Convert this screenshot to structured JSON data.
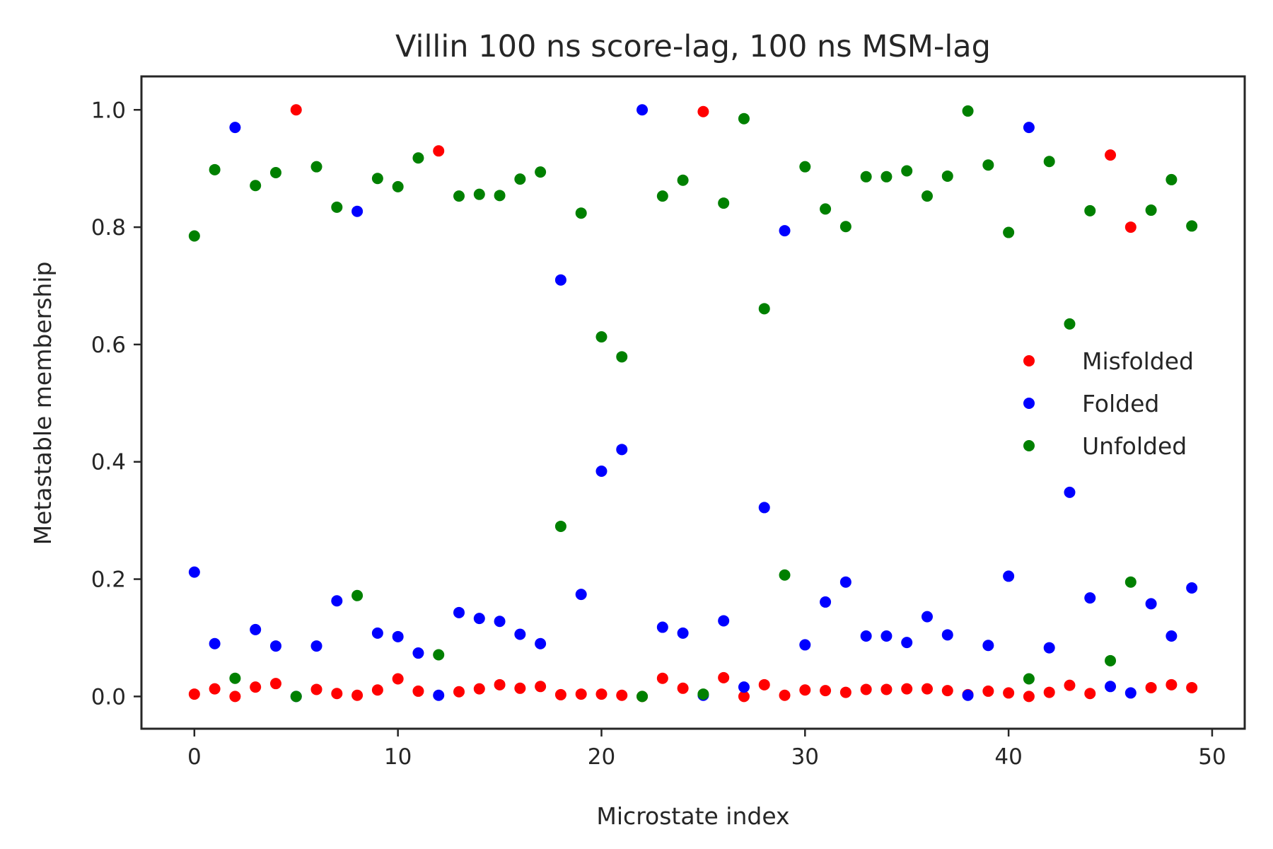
{
  "chart_data": {
    "type": "scatter",
    "title": "Villin 100 ns score-lag, 100 ns MSM-lag",
    "xlabel": "Microstate index",
    "ylabel": "Metastable membership",
    "xlim": [
      -2.6,
      51.6
    ],
    "ylim": [
      -0.055,
      1.057
    ],
    "xticks": [
      0,
      10,
      20,
      30,
      40,
      50
    ],
    "yticks": [
      0.0,
      0.2,
      0.4,
      0.6,
      0.8,
      1.0
    ],
    "xtick_labels": [
      "0",
      "10",
      "20",
      "30",
      "40",
      "50"
    ],
    "ytick_labels": [
      "0.0",
      "0.2",
      "0.4",
      "0.6",
      "0.8",
      "1.0"
    ],
    "grid": false,
    "legend_position": "center-right",
    "x": [
      0,
      1,
      2,
      3,
      4,
      5,
      6,
      7,
      8,
      9,
      10,
      11,
      12,
      13,
      14,
      15,
      16,
      17,
      18,
      19,
      20,
      21,
      22,
      23,
      24,
      25,
      26,
      27,
      28,
      29,
      30,
      31,
      32,
      33,
      34,
      35,
      36,
      37,
      38,
      39,
      40,
      41,
      42,
      43,
      44,
      45,
      46,
      47,
      48,
      49
    ],
    "series": [
      {
        "name": "Misfolded",
        "color": "#ff0000",
        "values": [
          0.004,
          0.013,
          0.0,
          0.016,
          0.022,
          1.0,
          0.012,
          0.005,
          0.002,
          0.011,
          0.03,
          0.009,
          0.93,
          0.008,
          0.013,
          0.02,
          0.014,
          0.017,
          0.003,
          0.004,
          0.004,
          0.002,
          0.0,
          0.031,
          0.014,
          0.997,
          0.032,
          0.0,
          0.02,
          0.002,
          0.011,
          0.01,
          0.007,
          0.012,
          0.012,
          0.013,
          0.013,
          0.01,
          0.003,
          0.009,
          0.006,
          0.0,
          0.007,
          0.019,
          0.005,
          0.923,
          0.8,
          0.015,
          0.02,
          0.015
        ]
      },
      {
        "name": "Folded",
        "color": "#0000ff",
        "values": [
          0.212,
          0.09,
          0.97,
          0.114,
          0.086,
          0.0,
          0.086,
          0.163,
          0.827,
          0.108,
          0.102,
          0.074,
          0.002,
          0.143,
          0.133,
          0.128,
          0.106,
          0.09,
          0.71,
          0.174,
          0.384,
          0.421,
          1.0,
          0.118,
          0.108,
          0.002,
          0.129,
          0.016,
          0.322,
          0.794,
          0.088,
          0.161,
          0.195,
          0.103,
          0.103,
          0.092,
          0.136,
          0.105,
          0.002,
          0.087,
          0.205,
          0.97,
          0.083,
          0.348,
          0.168,
          0.017,
          0.006,
          0.158,
          0.103,
          0.185
        ]
      },
      {
        "name": "Unfolded",
        "color": "#008000",
        "values": [
          0.785,
          0.898,
          0.031,
          0.871,
          0.893,
          0.0,
          0.903,
          0.834,
          0.172,
          0.883,
          0.869,
          0.918,
          0.071,
          0.853,
          0.856,
          0.854,
          0.882,
          0.894,
          0.29,
          0.824,
          0.613,
          0.579,
          0.0,
          0.853,
          0.88,
          0.004,
          0.841,
          0.985,
          0.661,
          0.207,
          0.903,
          0.831,
          0.801,
          0.886,
          0.886,
          0.896,
          0.853,
          0.887,
          0.998,
          0.906,
          0.791,
          0.03,
          0.912,
          0.635,
          0.828,
          0.061,
          0.195,
          0.829,
          0.881,
          0.802
        ]
      }
    ]
  }
}
